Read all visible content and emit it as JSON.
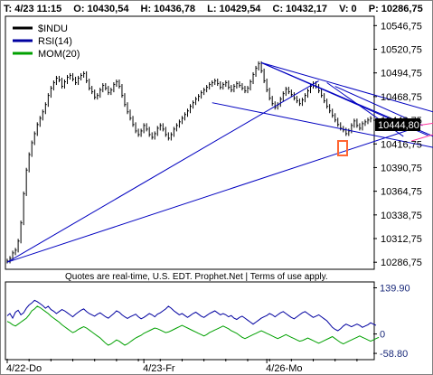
{
  "header": {
    "interval": "T: 4/23 11:15",
    "open": "O: 10430,54",
    "high": "H: 10436,78",
    "low": "L: 10429,54",
    "close": "C: 10432,17",
    "volume": "V: 0",
    "price": "P: 10286,75"
  },
  "legend": [
    {
      "label": "$INDU",
      "color": "#000000"
    },
    {
      "label": "RSI(14)",
      "color": "#0000a0"
    },
    {
      "label": "MOM(20)",
      "color": "#00a000"
    }
  ],
  "note": "Quotes are real-time, U.S. EDT. Prophet.Net | Terms of use apply.",
  "last_price_label": "10444,80",
  "colors": {
    "price_bars": "#000000",
    "trendlines": "#0000c0",
    "projection": "#ff3399",
    "shade": "#c0c0c0",
    "rsi": "#0000a0",
    "mom": "#00a000",
    "marker": "#ff6633",
    "price_tag_bg": "#000000"
  },
  "chart_data": [
    {
      "type": "line",
      "title": "$INDU",
      "x_ticks": [
        "4/22-Do",
        "4/23-Fr",
        "4/26-Mo"
      ],
      "y_ticks": [
        "10546,75",
        "10520,75",
        "10494,75",
        "10468,75",
        "10442,75",
        "10416,75",
        "10390,75",
        "10364,75",
        "10338,75",
        "10312,75",
        "10286,75"
      ],
      "ylim": [
        10280,
        10556
      ],
      "y_axis_side": "right",
      "last_price": 10444.8,
      "series": [
        {
          "values": [
            10288,
            10291,
            10297,
            10300,
            10310,
            10330,
            10362,
            10388,
            10405,
            10418,
            10428,
            10438,
            10445,
            10452,
            10460,
            10470,
            10478,
            10484,
            10489,
            10487,
            10480,
            10485,
            10490,
            10492,
            10488,
            10484,
            10489,
            10492,
            10494,
            10486,
            10478,
            10474,
            10468,
            10470,
            10476,
            10481,
            10478,
            10473,
            10476,
            10482,
            10485,
            10480,
            10470,
            10460,
            10452,
            10445,
            10438,
            10431,
            10427,
            10431,
            10437,
            10433,
            10427,
            10424,
            10428,
            10434,
            10437,
            10433,
            10427,
            10423,
            10427,
            10433,
            10437,
            10441,
            10445,
            10449,
            10453,
            10458,
            10462,
            10466,
            10469,
            10473,
            10476,
            10479,
            10482,
            10484,
            10486,
            10483,
            10479,
            10482,
            10484,
            10479,
            10476,
            10480,
            10483,
            10481,
            10478,
            10475,
            10478,
            10485,
            10493,
            10500,
            10505,
            10497,
            10486,
            10476,
            10467,
            10461,
            10457,
            10460,
            10466,
            10472,
            10477,
            10474,
            10471,
            10467,
            10464,
            10461,
            10465,
            10470,
            10475,
            10480,
            10483,
            10480,
            10475,
            10470,
            10464,
            10458,
            10453,
            10448,
            10443,
            10438,
            10434,
            10432,
            10428,
            10431,
            10437,
            10442,
            10437,
            10434,
            10439,
            10441,
            10443,
            10444.8
          ]
        }
      ],
      "trendlines": [
        {
          "from": [
            0,
            10286.75
          ],
          "to": [
            114,
            10486
          ]
        },
        {
          "from": [
            0,
            10286.75
          ],
          "to": [
            151,
            10436
          ]
        },
        {
          "from": [
            93,
            10506
          ],
          "to": [
            164,
            10445
          ]
        },
        {
          "from": [
            93,
            10506
          ],
          "to": [
            163,
            10416
          ]
        },
        {
          "from": [
            93,
            10506
          ],
          "to": [
            154,
            10426
          ]
        },
        {
          "from": [
            75,
            10462
          ],
          "to": [
            164,
            10408
          ]
        },
        {
          "from": [
            117,
            10484
          ],
          "to": [
            145,
            10425
          ]
        },
        {
          "from": [
            120,
            10480
          ],
          "to": [
            152,
            10437
          ]
        }
      ],
      "projection": [
        {
          "from": [
            148,
            10436
          ],
          "to": [
            168,
            10444.8
          ]
        },
        {
          "from": [
            148,
            10420
          ],
          "to": [
            166,
            10436
          ]
        }
      ],
      "shaded_from_index": 144
    },
    {
      "type": "line",
      "title": "RSI(14) / MOM(20)",
      "y_ticks": [
        "139.90",
        "0",
        "-58.80"
      ],
      "ylim": [
        -75,
        155
      ],
      "series": [
        {
          "name": "RSI(14)",
          "values": [
            55,
            62,
            48,
            66,
            72,
            58,
            64,
            78,
            88,
            94,
            102,
            98,
            92,
            86,
            78,
            84,
            74,
            69,
            62,
            68,
            74,
            70,
            64,
            58,
            52,
            60,
            66,
            72,
            76,
            68,
            62,
            58,
            54,
            60,
            64,
            58,
            52,
            48,
            55,
            62,
            70,
            66,
            58,
            52,
            47,
            52,
            56,
            60,
            52,
            46,
            50,
            56,
            62,
            58,
            52,
            60,
            64,
            70,
            76,
            84,
            78,
            70,
            64,
            58,
            62,
            56,
            50,
            56,
            62,
            66,
            60,
            54,
            50,
            56,
            62,
            66,
            70,
            64,
            58,
            62,
            58,
            52,
            56,
            48,
            44,
            50,
            54,
            48,
            42,
            36,
            30,
            36,
            42,
            48,
            52,
            56,
            62,
            58,
            52,
            58,
            64,
            68,
            62,
            56,
            50,
            46,
            52,
            58,
            64,
            68,
            62,
            56,
            50,
            54,
            58,
            52,
            46,
            40,
            30,
            20,
            14,
            10,
            16,
            24,
            30,
            26,
            22,
            26,
            30,
            26,
            20,
            24,
            28,
            34,
            30,
            26
          ]
        },
        {
          "name": "MOM(20)",
          "values": [
            38,
            34,
            28,
            24,
            30,
            36,
            42,
            48,
            58,
            70,
            76,
            84,
            80,
            74,
            68,
            62,
            54,
            48,
            42,
            36,
            28,
            22,
            16,
            10,
            4,
            8,
            14,
            18,
            22,
            18,
            12,
            6,
            0,
            -6,
            -12,
            -20,
            -28,
            -34,
            -30,
            -24,
            -18,
            -22,
            -28,
            -34,
            -30,
            -24,
            -18,
            -12,
            -8,
            -4,
            2,
            6,
            10,
            14,
            18,
            16,
            12,
            8,
            4,
            6,
            10,
            14,
            18,
            22,
            26,
            22,
            18,
            14,
            10,
            6,
            2,
            -2,
            -6,
            -2,
            4,
            8,
            12,
            16,
            20,
            24,
            20,
            16,
            10,
            6,
            2,
            -4,
            -10,
            -14,
            -10,
            -6,
            -2,
            2,
            6,
            10,
            6,
            2,
            -2,
            -6,
            -10,
            -14,
            -10,
            -6,
            -2,
            -6,
            -10,
            -14,
            -18,
            -22,
            -20,
            -16,
            -12,
            -16,
            -20,
            -24,
            -28,
            -24,
            -20,
            -16,
            -12,
            -8,
            -14,
            -20,
            -26,
            -30,
            -26,
            -22,
            -18,
            -14,
            -10,
            -6,
            -10,
            -14,
            -18,
            -22,
            -18,
            -14,
            -10
          ]
        }
      ]
    }
  ]
}
